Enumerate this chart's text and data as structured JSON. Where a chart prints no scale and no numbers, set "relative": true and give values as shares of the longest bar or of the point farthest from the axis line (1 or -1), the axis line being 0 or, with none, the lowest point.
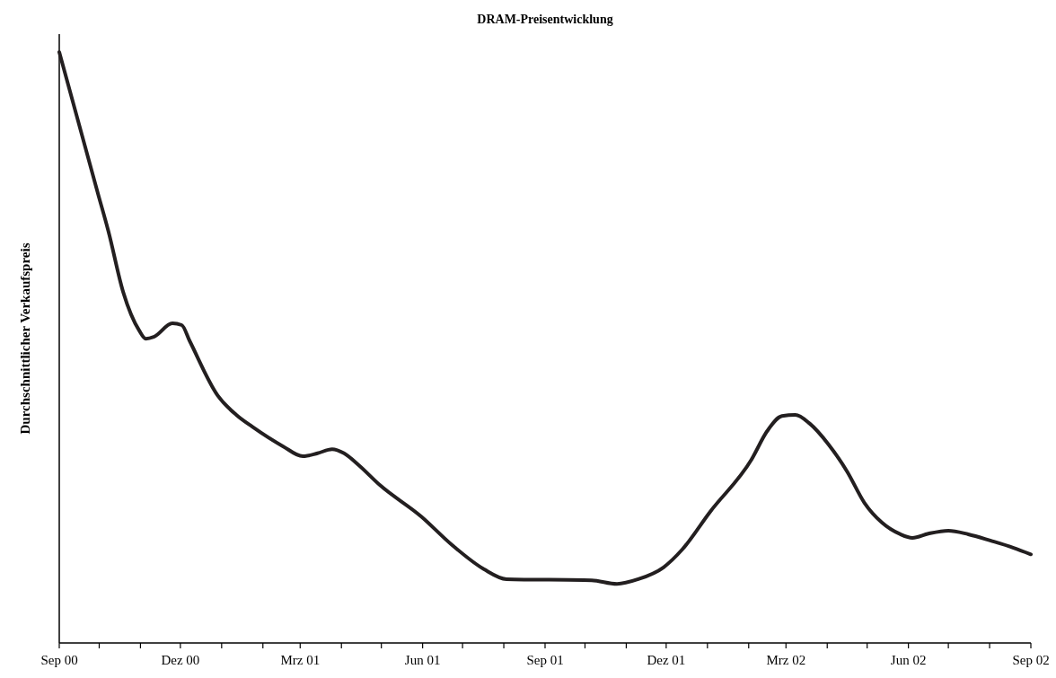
{
  "chart_data": {
    "type": "line",
    "title": "DRAM-Preisentwicklung",
    "ylabel": "Durchschnittlicher Verkaufspreis",
    "relative": true,
    "x": [
      "2000-09-01",
      "2000-09-30",
      "2000-10-08",
      "2000-10-19",
      "2000-10-31",
      "2000-11-05",
      "2000-11-11",
      "2000-11-25",
      "2000-12-02",
      "2000-12-08",
      "2000-12-29",
      "2001-01-12",
      "2001-01-24",
      "2001-02-16",
      "2001-03-03",
      "2001-03-14",
      "2001-03-25",
      "2001-04-03",
      "2001-04-14",
      "2001-04-30",
      "2001-05-31",
      "2001-06-23",
      "2001-07-17",
      "2001-08-03",
      "2001-10-06",
      "2001-10-25",
      "2001-11-10",
      "2001-11-29",
      "2001-12-13",
      "2002-01-03",
      "2002-02-03",
      "2002-02-15",
      "2002-02-26",
      "2002-03-08",
      "2002-03-19",
      "2002-04-02",
      "2002-04-16",
      "2002-04-29",
      "2002-05-12",
      "2002-05-26",
      "2002-06-04",
      "2002-06-16",
      "2002-07-01",
      "2002-07-16",
      "2002-08-02",
      "2002-08-19",
      "2002-09-01"
    ],
    "series": [
      {
        "color": "#231f20",
        "values": [
          1.0,
          0.761,
          0.696,
          0.594,
          0.529,
          0.515,
          0.518,
          0.541,
          0.538,
          0.511,
          0.419,
          0.386,
          0.366,
          0.333,
          0.316,
          0.321,
          0.328,
          0.321,
          0.301,
          0.267,
          0.214,
          0.166,
          0.125,
          0.108,
          0.106,
          0.1,
          0.108,
          0.128,
          0.158,
          0.222,
          0.31,
          0.359,
          0.384,
          0.386,
          0.371,
          0.336,
          0.29,
          0.237,
          0.204,
          0.184,
          0.178,
          0.185,
          0.19,
          0.184,
          0.173,
          0.161,
          0.15
        ]
      }
    ],
    "xlim": [
      "2000-09-01",
      "2002-09-01"
    ],
    "xticks": [
      {
        "value": "2000-09",
        "label": "Sep 00"
      },
      {
        "value": "2000-10",
        "label": null
      },
      {
        "value": "2000-11",
        "label": null
      },
      {
        "value": "2000-12",
        "label": "Dez 00"
      },
      {
        "value": "2001-01",
        "label": null
      },
      {
        "value": "2001-02",
        "label": null
      },
      {
        "value": "2001-03",
        "label": "Mrz 01"
      },
      {
        "value": "2001-04",
        "label": null
      },
      {
        "value": "2001-05",
        "label": null
      },
      {
        "value": "2001-06",
        "label": "Jun 01"
      },
      {
        "value": "2001-07",
        "label": null
      },
      {
        "value": "2001-08",
        "label": null
      },
      {
        "value": "2001-09",
        "label": "Sep 01"
      },
      {
        "value": "2001-10",
        "label": null
      },
      {
        "value": "2001-11",
        "label": null
      },
      {
        "value": "2001-12",
        "label": "Dez 01"
      },
      {
        "value": "2002-01",
        "label": null
      },
      {
        "value": "2002-02",
        "label": null
      },
      {
        "value": "2002-03",
        "label": "Mrz 02"
      },
      {
        "value": "2002-04",
        "label": null
      },
      {
        "value": "2002-05",
        "label": null
      },
      {
        "value": "2002-06",
        "label": "Jun 02"
      },
      {
        "value": "2002-07",
        "label": null
      },
      {
        "value": "2002-08",
        "label": null
      },
      {
        "value": "2002-09",
        "label": "Sep 02"
      }
    ]
  }
}
